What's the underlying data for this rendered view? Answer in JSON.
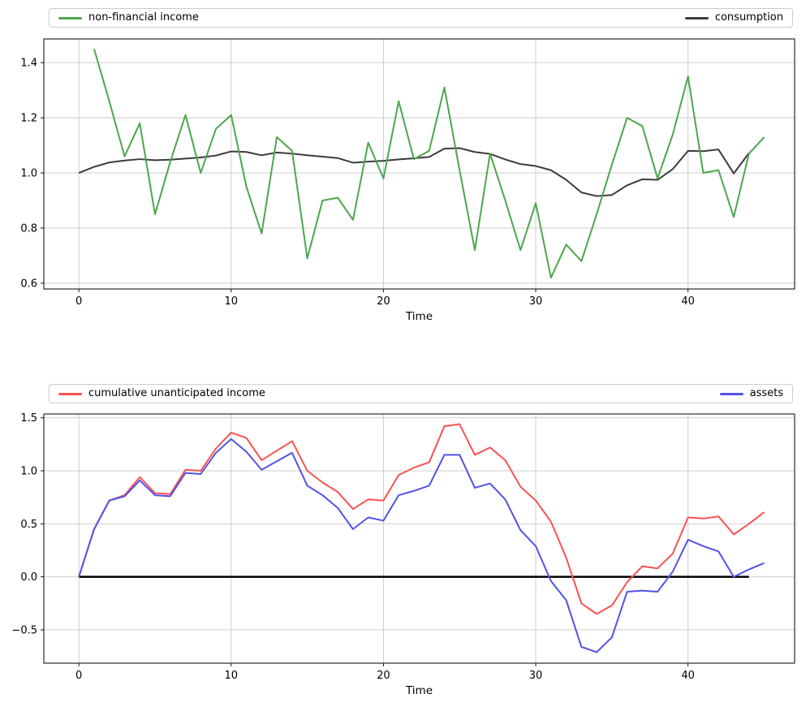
{
  "figure": {
    "background": "#ffffff",
    "grid_color": "#c9c9c9",
    "spine_color": "#000000",
    "text_color": "#000000"
  },
  "chart_data": [
    {
      "type": "line",
      "title": "",
      "xlabel": "Time",
      "ylabel": "",
      "grid": true,
      "legend_position": "above-expand",
      "xlim": [
        -2.3,
        47.0
      ],
      "ylim": [
        0.579,
        1.486
      ],
      "x_ticks": [
        {
          "value": 0,
          "label": "0"
        },
        {
          "value": 10,
          "label": "10"
        },
        {
          "value": 20,
          "label": "20"
        },
        {
          "value": 30,
          "label": "30"
        },
        {
          "value": 40,
          "label": "40"
        }
      ],
      "y_ticks": [
        {
          "value": 1.4,
          "label": "1.4"
        },
        {
          "value": 1.2,
          "label": "1.2"
        },
        {
          "value": 1.0,
          "label": "1.0"
        },
        {
          "value": 0.8,
          "label": "0.8"
        },
        {
          "value": 0.6,
          "label": "0.6"
        }
      ],
      "series": [
        {
          "name": "non-financial income",
          "color": "#4da64d",
          "line_width": 2,
          "x_start": 1,
          "z": 2,
          "legend": true,
          "values": [
            1.45,
            1.26,
            1.06,
            1.18,
            0.85,
            1.04,
            1.21,
            1.0,
            1.16,
            1.21,
            0.95,
            0.78,
            1.13,
            1.08,
            0.69,
            0.9,
            0.91,
            0.83,
            1.11,
            0.98,
            1.26,
            1.05,
            1.08,
            1.31,
            1.01,
            0.72,
            1.07,
            0.9,
            0.72,
            0.89,
            0.62,
            0.74,
            0.68,
            0.85,
            1.03,
            1.2,
            1.17,
            0.98,
            1.14,
            1.35,
            1.0,
            1.01,
            0.84,
            1.07,
            1.13
          ]
        },
        {
          "name": "consumption",
          "color": "#3c3c3c",
          "line_width": 2,
          "x_start": 0,
          "z": 1,
          "legend": true,
          "values": [
            1.0,
            1.022,
            1.038,
            1.045,
            1.05,
            1.046,
            1.048,
            1.052,
            1.056,
            1.063,
            1.078,
            1.076,
            1.064,
            1.074,
            1.07,
            1.064,
            1.059,
            1.054,
            1.037,
            1.041,
            1.044,
            1.049,
            1.053,
            1.058,
            1.088,
            1.09,
            1.076,
            1.069,
            1.049,
            1.032,
            1.025,
            1.01,
            0.975,
            0.929,
            0.916,
            0.92,
            0.955,
            0.977,
            0.975,
            1.014,
            1.08,
            1.079,
            1.085,
            0.998,
            1.072
          ]
        }
      ]
    },
    {
      "type": "line",
      "title": "",
      "xlabel": "Time",
      "ylabel": "",
      "grid": true,
      "legend_position": "above-expand",
      "xlim": [
        -2.3,
        47.0
      ],
      "ylim": [
        -0.814,
        1.536
      ],
      "x_ticks": [
        {
          "value": 0,
          "label": "0"
        },
        {
          "value": 10,
          "label": "10"
        },
        {
          "value": 20,
          "label": "20"
        },
        {
          "value": 30,
          "label": "30"
        },
        {
          "value": 40,
          "label": "40"
        }
      ],
      "y_ticks": [
        {
          "value": 1.5,
          "label": "1.5"
        },
        {
          "value": 1.0,
          "label": "1.0"
        },
        {
          "value": 0.5,
          "label": "0.5"
        },
        {
          "value": 0.0,
          "label": "0.0"
        },
        {
          "value": -0.5,
          "label": "−0.5"
        }
      ],
      "series": [
        {
          "name": "cumulative unanticipated income",
          "color": "#fa5252",
          "line_width": 2,
          "x_start": 0,
          "z": 2,
          "legend": true,
          "values": [
            0.0,
            0.45,
            0.72,
            0.77,
            0.94,
            0.79,
            0.78,
            1.01,
            1.0,
            1.21,
            1.36,
            1.31,
            1.1,
            1.19,
            1.28,
            1.0,
            0.89,
            0.8,
            0.64,
            0.73,
            0.72,
            0.96,
            1.03,
            1.08,
            1.42,
            1.44,
            1.15,
            1.22,
            1.1,
            0.85,
            0.72,
            0.52,
            0.18,
            -0.25,
            -0.35,
            -0.27,
            -0.05,
            0.1,
            0.08,
            0.22,
            0.56,
            0.55,
            0.57,
            0.4,
            0.5,
            0.61
          ]
        },
        {
          "name": "assets",
          "color": "#5252e8",
          "line_width": 2,
          "x_start": 0,
          "z": 3,
          "legend": true,
          "values": [
            0.0,
            0.45,
            0.72,
            0.76,
            0.91,
            0.77,
            0.76,
            0.98,
            0.97,
            1.17,
            1.3,
            1.18,
            1.01,
            1.09,
            1.17,
            0.86,
            0.77,
            0.65,
            0.45,
            0.56,
            0.53,
            0.77,
            0.81,
            0.86,
            1.15,
            1.15,
            0.84,
            0.88,
            0.73,
            0.44,
            0.29,
            -0.04,
            -0.22,
            -0.66,
            -0.71,
            -0.57,
            -0.14,
            -0.13,
            -0.14,
            0.05,
            0.35,
            0.29,
            0.24,
            0.0,
            0.07,
            0.13
          ]
        },
        {
          "name": "zero line",
          "color": "#000000",
          "line_width": 2.5,
          "z": 1,
          "legend": false,
          "x": [
            0,
            44
          ],
          "values": [
            0,
            0
          ]
        }
      ]
    }
  ]
}
